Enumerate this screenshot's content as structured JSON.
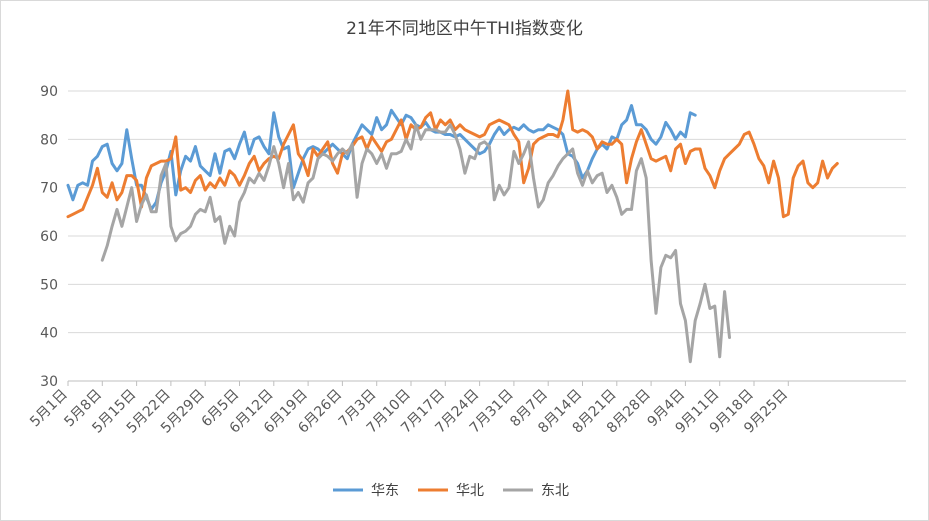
{
  "chart_data": {
    "type": "line",
    "title": "21年不同地区中午THI指数变化",
    "xlabel": "",
    "ylabel": "",
    "ylim": [
      30,
      90
    ],
    "yticks": [
      30,
      40,
      50,
      60,
      70,
      80,
      90
    ],
    "grid": true,
    "legend_position": "bottom",
    "xticks": [
      "5月1日",
      "5月8日",
      "5月15日",
      "5月22日",
      "5月29日",
      "6月5日",
      "6月12日",
      "6月19日",
      "6月26日",
      "7月3日",
      "7月10日",
      "7月17日",
      "7月24日",
      "7月31日",
      "8月7日",
      "8月14日",
      "8月21日",
      "8月28日",
      "9月4日",
      "9月11日",
      "9月18日",
      "9月25日"
    ],
    "series": [
      {
        "name": "华东",
        "color": "#5b9bd5",
        "start_day": 0,
        "values": [
          70.5,
          67.5,
          70.5,
          71,
          70.5,
          75.5,
          76.5,
          78.5,
          79,
          75,
          73.5,
          75,
          82,
          76,
          70.5,
          70.5,
          68,
          65.5,
          67,
          71,
          73.5,
          77.5,
          68.5,
          73.5,
          76.5,
          75.5,
          78.5,
          74.5,
          73.5,
          72.5,
          77,
          73,
          77.5,
          78,
          76,
          79,
          81.5,
          77,
          80,
          80.5,
          78.5,
          77,
          85.5,
          80.5,
          78,
          78.5,
          70,
          73,
          76,
          78,
          78.5,
          78,
          77,
          78,
          79,
          78,
          77,
          76,
          79,
          81,
          83,
          82,
          81,
          84.5,
          82,
          83,
          86,
          84.5,
          83,
          85,
          84.5,
          83,
          82.5,
          83.5,
          82,
          81.5,
          81.5,
          81,
          81,
          80.5,
          81,
          80,
          79,
          78,
          77,
          77.5,
          79,
          81,
          82.5,
          81,
          82,
          82.5,
          82,
          83,
          82,
          81.5,
          82,
          82,
          83,
          82.5,
          82,
          81,
          77,
          76.5,
          75,
          72,
          73.5,
          76,
          78,
          79,
          78,
          80.5,
          80,
          83,
          84,
          87,
          83,
          83,
          82,
          80,
          79,
          80.5,
          83.5,
          82,
          80,
          81.5,
          80.5,
          85.5,
          85
        ]
      },
      {
        "name": "华北",
        "color": "#ed7d31",
        "start_day": 0,
        "values": [
          64,
          64.5,
          65,
          65.5,
          68,
          70.5,
          74,
          69,
          68,
          71,
          67.5,
          69,
          72.5,
          72.5,
          71.5,
          66,
          72,
          74.5,
          75,
          75.5,
          75.5,
          76,
          80.5,
          69.5,
          70,
          69,
          71.5,
          72.5,
          69.5,
          71,
          70,
          72,
          70.5,
          73.5,
          72.5,
          70.5,
          72.5,
          75,
          76.5,
          73.5,
          75,
          76,
          76.5,
          76,
          79,
          81,
          83,
          77,
          75.5,
          72.5,
          78,
          76.5,
          78,
          79.5,
          75,
          73,
          77,
          77.5,
          78.5,
          80,
          80.5,
          78,
          80.5,
          79,
          77.5,
          79.5,
          80,
          82,
          84,
          80,
          83,
          82,
          82.5,
          84.5,
          85.5,
          82,
          84,
          83,
          84,
          82,
          83,
          82,
          81.5,
          81,
          80.5,
          81,
          83,
          83.5,
          84,
          83.5,
          83,
          81,
          79.5,
          71,
          74,
          79,
          80,
          80.5,
          81,
          81,
          80.5,
          84,
          90,
          82,
          81.5,
          82,
          81.5,
          80.5,
          78,
          79.5,
          79,
          79,
          80,
          79,
          71,
          76,
          79.5,
          82,
          79,
          76,
          75.5,
          76,
          76.5,
          73.5,
          78,
          79,
          75,
          77.5,
          78,
          78,
          74,
          72.5,
          70,
          73.5,
          76,
          77,
          78,
          79,
          81,
          81.5,
          79,
          76,
          74.5,
          71,
          75.5,
          72,
          64,
          64.5,
          72,
          74.5,
          75.5,
          71,
          70,
          71,
          75.5,
          72,
          74,
          75
        ]
      },
      {
        "name": "东北",
        "color": "#a5a5a5",
        "start_day": 7,
        "values": [
          55,
          58,
          62,
          65.5,
          62,
          66,
          70,
          63,
          66.5,
          68.5,
          65,
          65,
          72.5,
          75,
          62,
          59,
          60.5,
          61,
          62,
          64.5,
          65.5,
          65,
          68,
          63,
          64,
          58.5,
          62,
          60,
          67,
          69,
          72,
          71,
          73,
          71.5,
          74.5,
          78.5,
          75,
          70,
          75,
          67.5,
          69,
          67,
          71,
          72,
          76,
          77,
          76.5,
          75.5,
          77,
          78,
          77,
          79,
          68,
          75,
          78,
          77,
          75,
          77,
          74,
          77,
          77,
          77.5,
          80,
          78,
          83,
          80,
          82,
          82,
          82,
          81.5,
          81.5,
          83,
          81,
          78,
          73,
          76.5,
          76,
          79,
          79.5,
          78.5,
          67.5,
          70.5,
          68.5,
          70,
          77.5,
          75,
          77,
          79.5,
          72,
          66,
          67.5,
          71,
          72.5,
          74.5,
          76,
          77,
          78,
          73,
          70.5,
          73.5,
          71,
          72.5,
          73,
          69,
          70.5,
          68,
          64.5,
          65.5,
          65.5,
          73.5,
          76,
          72,
          55,
          44,
          53.5,
          56,
          55.5,
          57,
          46,
          42.5,
          34,
          42.5,
          46,
          50,
          45,
          45.5,
          35,
          48.5,
          39
        ]
      }
    ]
  }
}
